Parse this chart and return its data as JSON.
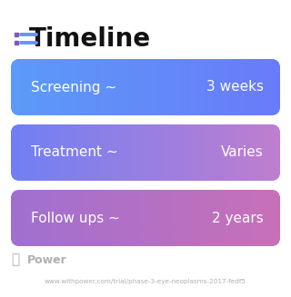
{
  "title": "Timeline",
  "title_fontsize": 20,
  "title_color": "#111111",
  "icon_color_dot": "#7c5cbf",
  "icon_color_line": "#6c8fff",
  "background_color": "#ffffff",
  "rows": [
    {
      "left_label": "Screening ~",
      "right_label": "3 weeks",
      "gradient": [
        "#5b9bf8",
        "#6a7bfa"
      ]
    },
    {
      "left_label": "Treatment ~",
      "right_label": "Varies",
      "gradient": [
        "#7080f5",
        "#c07ecf"
      ]
    },
    {
      "left_label": "Follow ups ~",
      "right_label": "2 years",
      "gradient": [
        "#a070d0",
        "#c870b8"
      ]
    }
  ],
  "row_text_color": "#ffffff",
  "row_text_fontsize": 11,
  "watermark_text": "Power",
  "watermark_color": "#b0b0b0",
  "watermark_fontsize": 9,
  "url_text": "www.withpower.com/trial/phase-3-eye-neoplasms-2017-fedf5",
  "url_color": "#b0b0b0",
  "url_fontsize": 5.2
}
